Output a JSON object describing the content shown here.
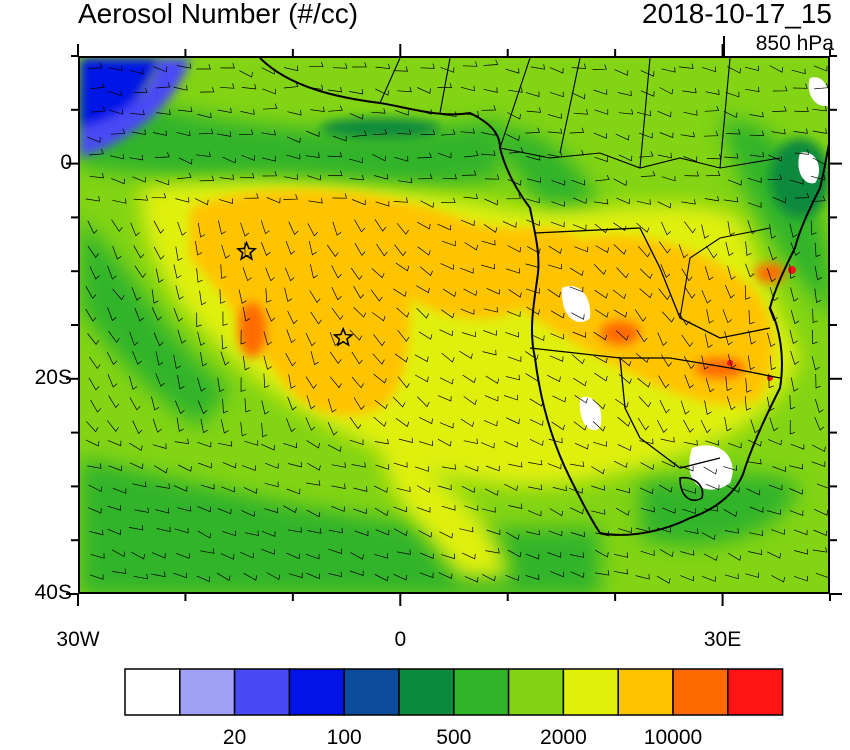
{
  "title": "Aerosol Number (#/cc)",
  "datetime": "2018-10-17_15",
  "level": "850 hPa",
  "axes": {
    "y_ticks": [
      {
        "label": "0",
        "value": 0
      },
      {
        "label": "20S",
        "value": -20
      },
      {
        "label": "40S",
        "value": -40
      }
    ],
    "x_ticks": [
      {
        "label": "30W",
        "value": -30
      },
      {
        "label": "0",
        "value": 0
      },
      {
        "label": "30E",
        "value": 30
      }
    ],
    "lon_range": [
      -30,
      40
    ],
    "lat_range": [
      -40,
      10
    ]
  },
  "colorbar": {
    "colors": [
      "#ffffff",
      "#a0a0f5",
      "#4848f5",
      "#0014e6",
      "#0c4c9c",
      "#0a8a3c",
      "#32b42a",
      "#82d414",
      "#e0f00a",
      "#ffc400",
      "#ff6a00",
      "#ff1414"
    ],
    "labels": [
      "20",
      "100",
      "500",
      "2000",
      "10000"
    ]
  },
  "markers": [
    {
      "name": "star",
      "lon": -14.5,
      "lat": -8
    },
    {
      "name": "star",
      "lon": -5.5,
      "lat": -16
    }
  ]
}
